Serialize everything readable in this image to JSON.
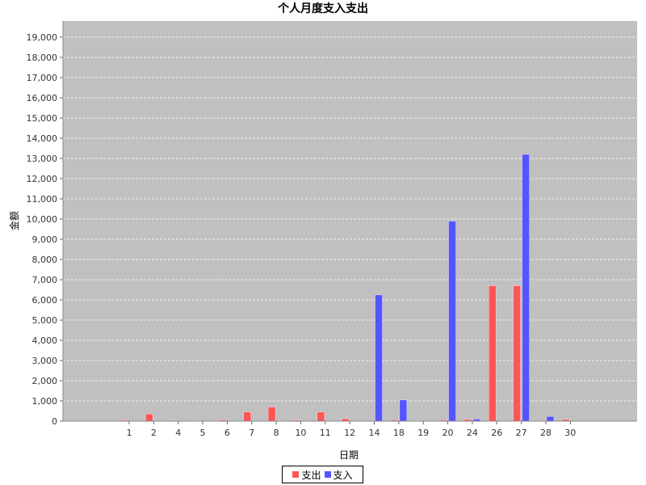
{
  "chart_data": {
    "type": "bar",
    "title": "个人月度支入支出",
    "xlabel": "日期",
    "ylabel": "金额",
    "categories": [
      "1",
      "2",
      "4",
      "5",
      "6",
      "7",
      "8",
      "10",
      "11",
      "12",
      "14",
      "18",
      "19",
      "20",
      "24",
      "26",
      "27",
      "28",
      "30"
    ],
    "series": [
      {
        "name": "支出",
        "color": "#ff5555",
        "values": [
          50,
          350,
          40,
          20,
          60,
          450,
          700,
          50,
          450,
          120,
          0,
          60,
          40,
          60,
          80,
          6700,
          6700,
          0,
          80
        ]
      },
      {
        "name": "支入",
        "color": "#5555ff",
        "values": [
          0,
          0,
          0,
          0,
          0,
          0,
          0,
          0,
          0,
          0,
          6250,
          1050,
          0,
          9900,
          100,
          0,
          13200,
          230,
          0
        ]
      }
    ],
    "ylim": [
      0,
      19000
    ],
    "yticks": [
      0,
      1000,
      2000,
      3000,
      4000,
      5000,
      6000,
      7000,
      8000,
      9000,
      10000,
      11000,
      12000,
      13000,
      14000,
      15000,
      16000,
      17000,
      18000,
      19000
    ],
    "grid": true,
    "legend_position": "bottom",
    "plot_background": "#c0c0c0"
  }
}
